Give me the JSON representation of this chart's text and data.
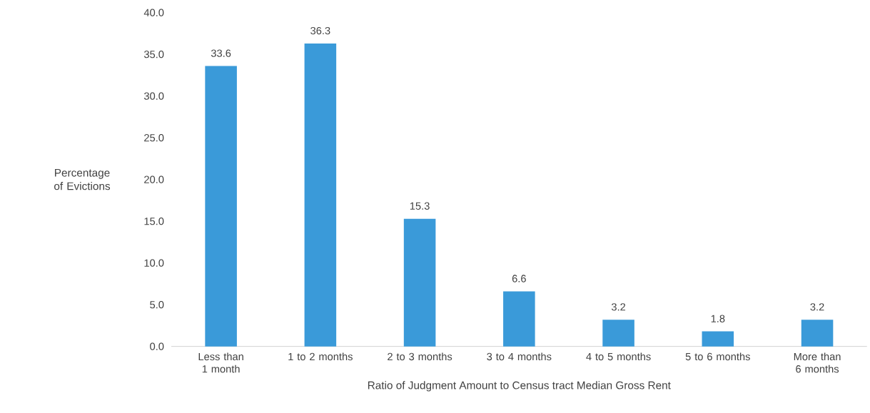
{
  "chart_data": {
    "type": "bar",
    "xlabel": "Ratio of Judgment Amount to Census tract Median Gross Rent",
    "ylabel": "Percentage of Evictions",
    "categories": [
      "Less than 1 month",
      "1 to 2 months",
      "2 to 3 months",
      "3 to 4 months",
      "4 to 5 months",
      "5 to 6 months",
      "More than 6 months"
    ],
    "values": [
      33.6,
      36.3,
      15.3,
      6.6,
      3.2,
      1.8,
      3.2
    ],
    "color": "#3a9ad9",
    "ylim": [
      0,
      40
    ],
    "yticks": [
      {
        "value": 0,
        "label": "0.0"
      },
      {
        "value": 5,
        "label": "5.0"
      },
      {
        "value": 10,
        "label": "10.0"
      },
      {
        "value": 15,
        "label": "15.0"
      },
      {
        "value": 20,
        "label": "20.0"
      },
      {
        "value": 25,
        "label": "25.0"
      },
      {
        "value": 30,
        "label": "30.0"
      },
      {
        "value": 35,
        "label": "35.0"
      },
      {
        "value": 40,
        "label": "40.0"
      }
    ],
    "data_labels": true
  }
}
